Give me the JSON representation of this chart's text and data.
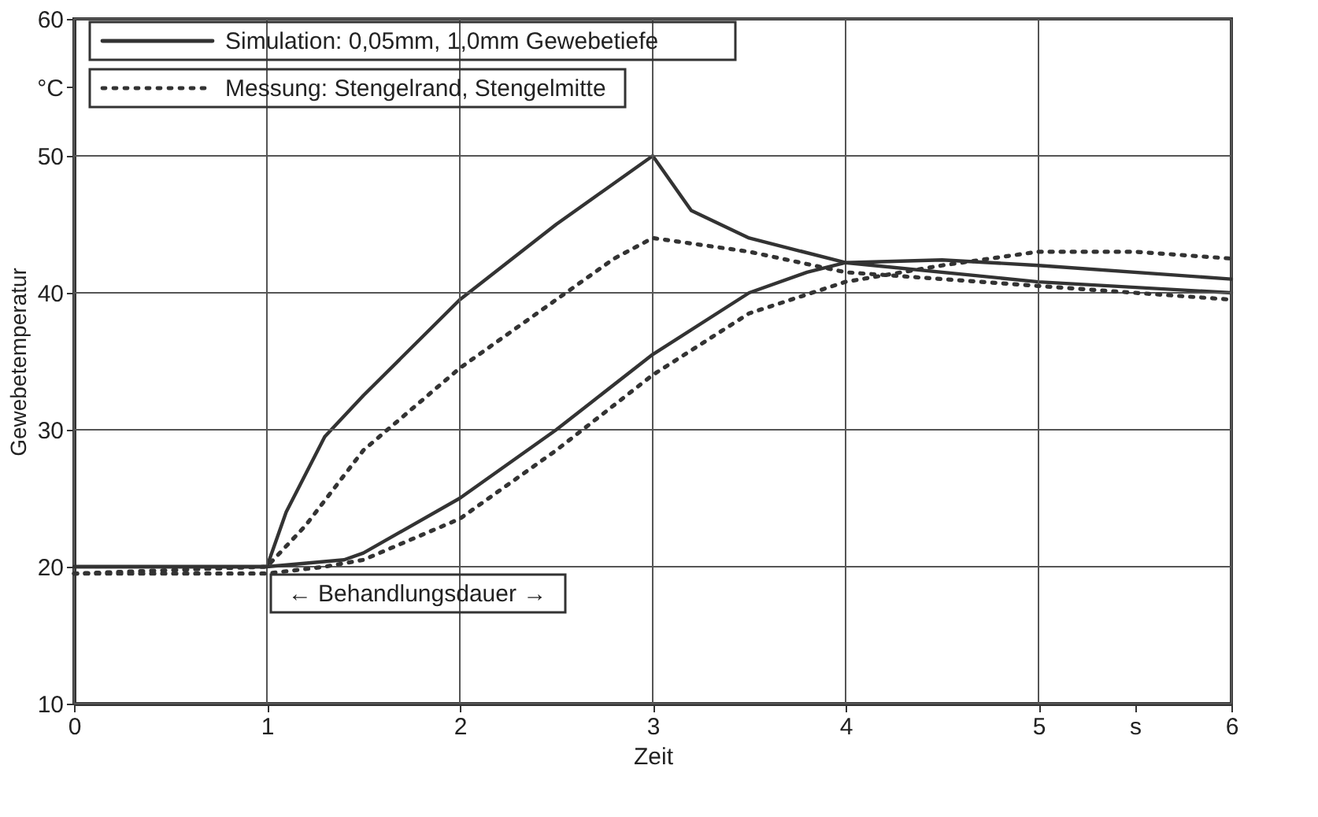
{
  "chart_data": {
    "type": "line",
    "xlabel": "Zeit",
    "ylabel": "Gewebetemperatur",
    "xlim": [
      0,
      6
    ],
    "ylim": [
      10,
      60
    ],
    "xticks": [
      0,
      1,
      2,
      3,
      4,
      5,
      {
        "value": 5.5,
        "label": "s"
      },
      6
    ],
    "yticks": [
      10,
      20,
      30,
      40,
      50,
      {
        "value": 55,
        "label": "°C"
      },
      60
    ],
    "grid": true,
    "legend": "top left",
    "marker": "none",
    "annotations": [
      "← Behandlungsdauer →"
    ],
    "series": [
      {
        "name": "Simulation: 0,05mm, 1,0mm Gewebetiefe",
        "color": "#333333",
        "line_style": "solid",
        "x": [
          0,
          1,
          1.1,
          1.3,
          1.5,
          2,
          2.5,
          3,
          3.2,
          3.5,
          4,
          5,
          6
        ],
        "values": [
          20,
          20,
          24,
          29.5,
          32.5,
          39.5,
          45,
          50,
          46,
          44,
          42.2,
          40.8,
          40
        ]
      },
      {
        "color": "#333333",
        "line_style": "solid",
        "x": [
          0,
          1,
          1.4,
          1.5,
          2,
          2.5,
          3,
          3.5,
          3.8,
          4,
          4.5,
          5,
          6
        ],
        "values": [
          20,
          20,
          20.5,
          21,
          25,
          30,
          35.5,
          40,
          41.5,
          42.2,
          42.4,
          42,
          41
        ]
      },
      {
        "name": "Messung: Stengelrand, Stengelmitte",
        "color": "#333333",
        "line_style": "dotted",
        "x": [
          0,
          1,
          1.2,
          1.5,
          2,
          2.5,
          2.8,
          3,
          3.5,
          4,
          5,
          6
        ],
        "values": [
          19.5,
          20,
          23,
          28.5,
          34.5,
          39.5,
          42.5,
          44,
          43,
          41.5,
          40.5,
          39.5
        ]
      },
      {
        "color": "#333333",
        "line_style": "dotted",
        "x": [
          0,
          1,
          1.3,
          1.5,
          2,
          2.5,
          3,
          3.5,
          4,
          4.5,
          5,
          5.5,
          6
        ],
        "values": [
          19.5,
          19.5,
          20,
          20.5,
          23.5,
          28.5,
          34,
          38.5,
          40.8,
          42,
          43,
          43,
          42.5
        ]
      }
    ]
  }
}
